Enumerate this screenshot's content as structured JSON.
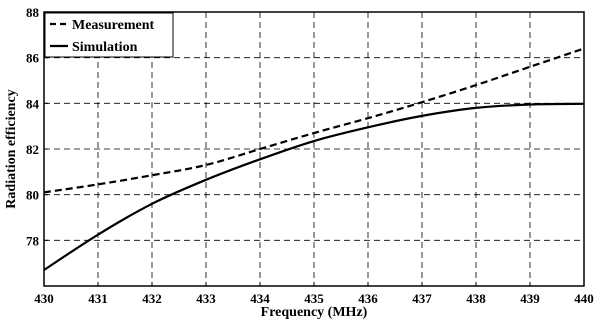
{
  "chart_data": {
    "type": "line",
    "title": "",
    "xlabel": "Frequency (MHz)",
    "ylabel": "Radiation efficiency",
    "xlim": [
      430,
      440
    ],
    "ylim": [
      76,
      88
    ],
    "xticks": [
      430,
      431,
      432,
      433,
      434,
      435,
      436,
      437,
      438,
      439,
      440
    ],
    "yticks": [
      78,
      80,
      82,
      84,
      86,
      88
    ],
    "grid": true,
    "legend_position": "top-left",
    "series": [
      {
        "name": "Measurement",
        "style": "dashed",
        "color": "#000000",
        "x": [
          430,
          431,
          432,
          433,
          434,
          435,
          436,
          437,
          438,
          439,
          440
        ],
        "y": [
          80.1,
          80.45,
          80.85,
          81.3,
          82.0,
          82.7,
          83.35,
          84.05,
          84.8,
          85.6,
          86.4
        ]
      },
      {
        "name": "Simulation",
        "style": "solid",
        "color": "#000000",
        "x": [
          430,
          431,
          432,
          433,
          434,
          435,
          436,
          437,
          438,
          439,
          440
        ],
        "y": [
          76.7,
          78.25,
          79.6,
          80.65,
          81.55,
          82.35,
          82.95,
          83.45,
          83.8,
          83.95,
          83.98
        ]
      }
    ]
  }
}
